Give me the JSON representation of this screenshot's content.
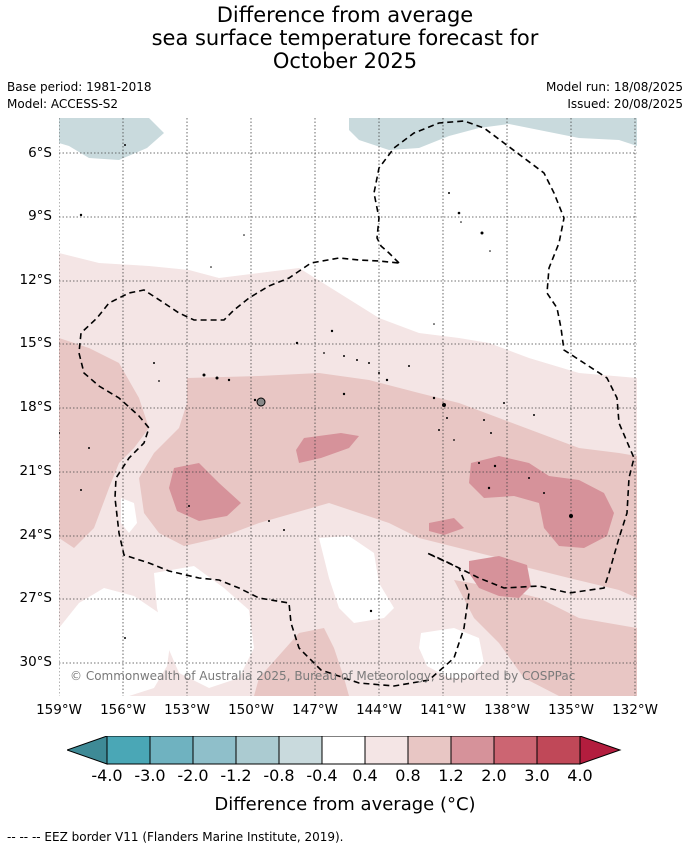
{
  "header": {
    "title_line1": "Difference from average",
    "title_line2": "sea surface temperature forecast for",
    "title_line3": "October 2025",
    "base_period": "Base period: 1981-2018",
    "model": "Model: ACCESS-S2",
    "model_run": "Model run: 18/08/2025",
    "issued": "Issued: 20/08/2025"
  },
  "map": {
    "lat_labels": [
      "6°S",
      "9°S",
      "12°S",
      "15°S",
      "18°S",
      "21°S",
      "24°S",
      "27°S",
      "30°S"
    ],
    "lon_labels": [
      "159°W",
      "156°W",
      "153°W",
      "150°W",
      "147°W",
      "144°W",
      "141°W",
      "138°W",
      "135°W",
      "132°W"
    ],
    "lat_range": [
      -32.5,
      -5.4
    ],
    "lon_range": [
      -159,
      -131.9
    ],
    "copyright": "© Commonwealth of Australia 2025, Bureau of Meteorology, supported by COSPPac"
  },
  "colorbar": {
    "labels": [
      "-4.0",
      "-3.0",
      "-2.0",
      "-1.2",
      "-0.8",
      "-0.4",
      "0.4",
      "0.8",
      "1.2",
      "2.0",
      "3.0",
      "4.0"
    ],
    "colors": [
      "#3e8a96",
      "#4aa7b6",
      "#6fb2c0",
      "#8fbfca",
      "#abcbd1",
      "#c9dadd",
      "#ffffff",
      "#f4e5e5",
      "#e8c6c4",
      "#d6929a",
      "#cc6572",
      "#c04858",
      "#b31d3e"
    ],
    "title": "Difference from average (°C)"
  },
  "footer": {
    "eez": "--  --  -- EEZ border V11 (Flanders Marine Institute, 2019)."
  }
}
